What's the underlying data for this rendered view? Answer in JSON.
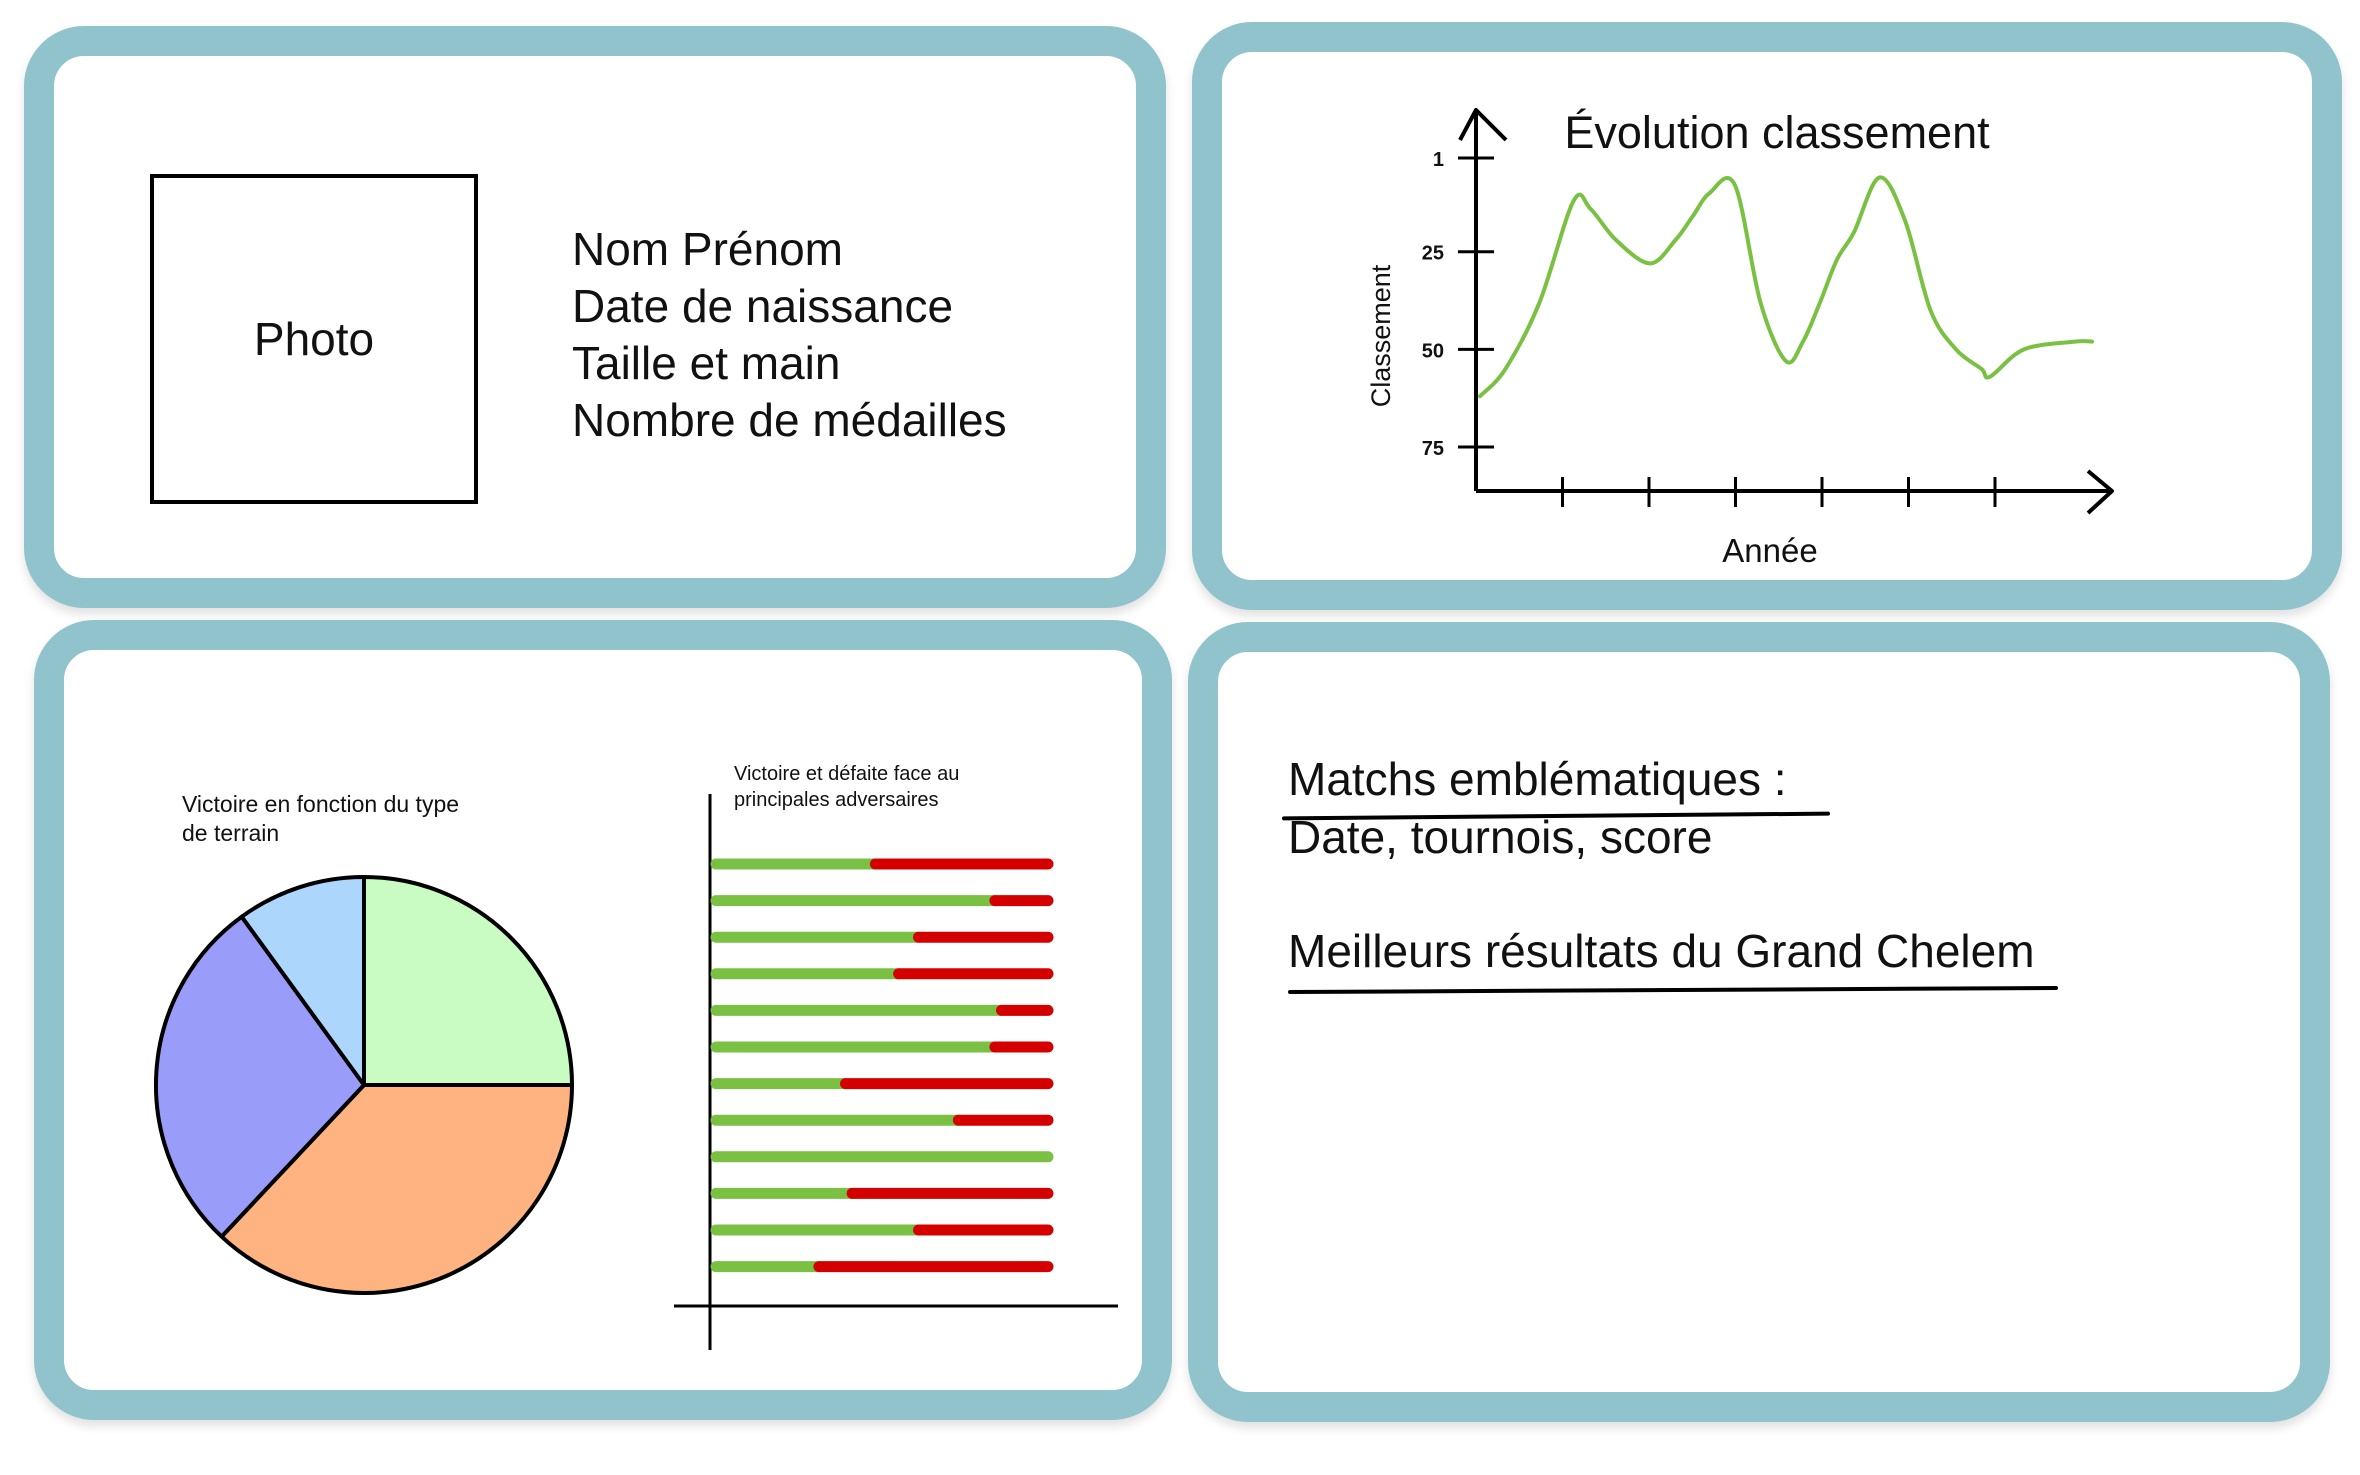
{
  "profile": {
    "photo_label": "Photo",
    "lines": [
      "Nom Prénom",
      "Date de naissance",
      "Taille et main",
      "Nombre de médailles"
    ]
  },
  "chart_data": [
    {
      "type": "line",
      "title": "Évolution classement",
      "xlabel": "Année",
      "ylabel": "Classement",
      "y_ticks": [
        "1",
        "25",
        "50",
        "75"
      ],
      "y_inverted": true,
      "ylim": [
        75,
        1
      ],
      "series": [
        {
          "color": "#7ac143",
          "x": [
            0.0,
            0.3,
            0.7,
            1.1,
            1.3,
            1.6,
            2.0,
            2.3,
            2.5,
            2.7,
            3.0,
            3.3,
            3.6,
            3.8,
            4.0,
            4.2,
            4.4,
            4.7,
            5.0,
            5.3,
            5.6,
            5.9,
            6.0,
            6.4,
            7.0,
            7.2
          ],
          "y": [
            62,
            55,
            38,
            12,
            14,
            22,
            28,
            22,
            16,
            10,
            8,
            38,
            53,
            48,
            38,
            27,
            20,
            6,
            17,
            40,
            50,
            55,
            57,
            50,
            48,
            48
          ]
        }
      ]
    },
    {
      "type": "pie",
      "title": "Victoire en fonction du type de terrain",
      "slices": [
        {
          "value": 25,
          "color": "#c8fcc2"
        },
        {
          "value": 37,
          "color": "#ffb380"
        },
        {
          "value": 28,
          "color": "#9a9cfa"
        },
        {
          "value": 10,
          "color": "#acd6fc"
        }
      ]
    },
    {
      "type": "bar",
      "title": "Victoire et défaite face au principales adversaires",
      "stacked": true,
      "orientation": "horizontal",
      "series": [
        {
          "color": "#7ac143",
          "values": [
            48,
            84,
            61,
            55,
            86,
            84,
            39,
            73,
            100,
            41,
            61,
            31
          ]
        },
        {
          "color": "#d40000",
          "values": [
            52,
            16,
            39,
            45,
            14,
            16,
            61,
            27,
            0,
            59,
            39,
            69
          ]
        }
      ]
    }
  ],
  "matches": {
    "heading": "Matchs emblématiques :",
    "subline": "Date, tournois, score",
    "grand_slam_heading": "Meilleurs résultats du Grand Chelem"
  }
}
